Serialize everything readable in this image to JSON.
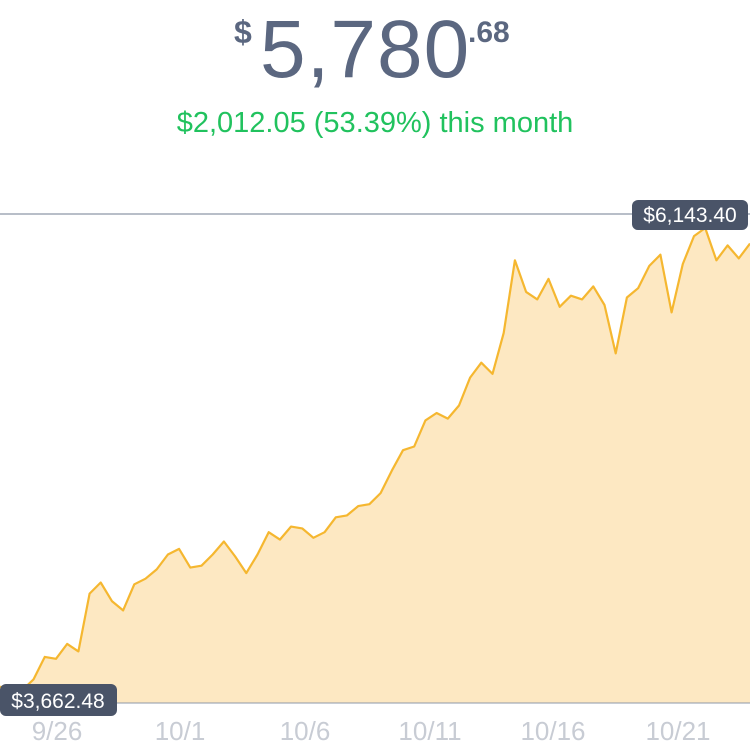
{
  "header": {
    "currency_symbol": "$",
    "price_whole": "5,780",
    "price_cents": ".68",
    "change_text": "$2,012.05 (53.39%) this month"
  },
  "colors": {
    "price": "#5b6780",
    "change_positive": "#21c25e",
    "line": "#f5b730",
    "area": "#fde8c2",
    "badge": "#4a5468",
    "reference_line": "#8e98a8",
    "tick": "#c8ccd4"
  },
  "chart_data": {
    "type": "area",
    "x_ticks": [
      "9/26",
      "10/1",
      "10/6",
      "10/11",
      "10/16",
      "10/21"
    ],
    "max_label": "$6,143.40",
    "min_label": "$3,662.48",
    "ylim": [
      3662.48,
      6143.4
    ],
    "series": [
      {
        "values": [
          3680,
          3662.48,
          3662.48,
          3720,
          3840,
          3830,
          3910,
          3870,
          4180,
          4240,
          4140,
          4090,
          4230,
          4260,
          4310,
          4390,
          4420,
          4320,
          4330,
          4390,
          4460,
          4380,
          4290,
          4390,
          4510,
          4470,
          4540,
          4530,
          4480,
          4510,
          4590,
          4600,
          4650,
          4660,
          4720,
          4840,
          4950,
          4970,
          5110,
          5150,
          5120,
          5190,
          5340,
          5420,
          5360,
          5580,
          5970,
          5800,
          5760,
          5870,
          5720,
          5780,
          5760,
          5830,
          5730,
          5470,
          5770,
          5820,
          5940,
          6000,
          5690,
          5950,
          6100,
          6143.4,
          5970,
          6050,
          5980,
          6060
        ]
      }
    ]
  }
}
